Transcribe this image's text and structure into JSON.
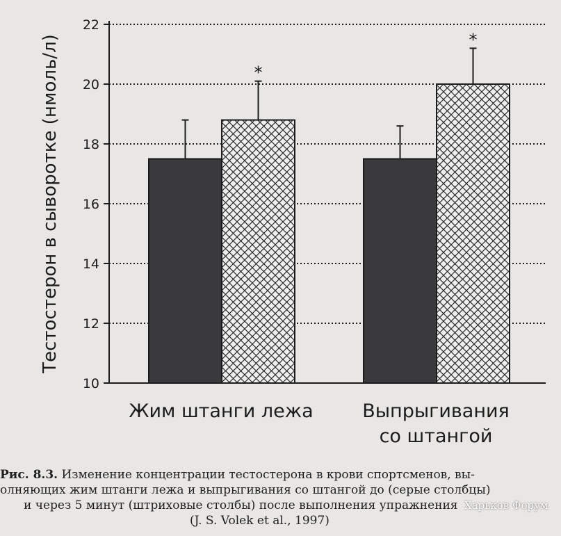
{
  "chart_data": {
    "type": "bar",
    "ylabel": "Тестостерон в сыворотке (нмоль/л)",
    "ylim": [
      10,
      22
    ],
    "yticks": [
      10,
      12,
      14,
      16,
      18,
      20,
      22
    ],
    "grid": "horizontal dotted",
    "categories": [
      "Жим штанги лежа",
      "Выпрыгивания|со штангой"
    ],
    "series": [
      {
        "values": [
          17.5,
          17.5
        ],
        "errors": [
          1.3,
          1.1
        ],
        "fill": "solid",
        "color": "#3a3a3c"
      },
      {
        "values": [
          18.8,
          20.0
        ],
        "errors": [
          1.3,
          1.2
        ],
        "fill": "crosshatch",
        "color": "#f0eeee",
        "significance": [
          "*",
          "*"
        ]
      }
    ]
  },
  "caption": {
    "label": "Рис. 8.3.",
    "line1": " Изменение концентрации тестостерона в крови спортсменов, вы-",
    "line2": "олняющих жим штанги лежа и выпрыгивания со штангой до (серые столбцы)",
    "line3": "и через 5 минут (штриховые столбы) после выполнения упражнения",
    "line4": "(J. S. Volek et al., 1997)"
  },
  "watermark": "Харьков Форум",
  "colors": {
    "background": "#e9e7e5",
    "axis": "#1c1c1c",
    "solid_bar": "#3a3a3c",
    "hatch_bar": "#f0eeee"
  }
}
